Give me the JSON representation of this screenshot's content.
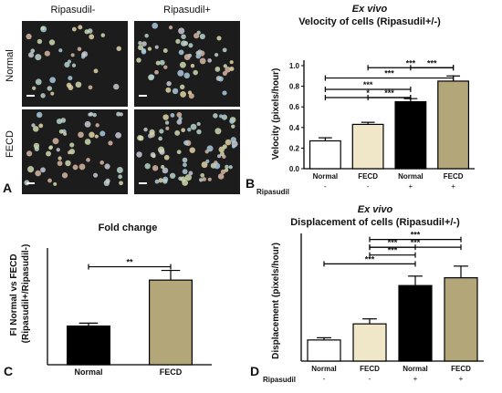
{
  "panel_a": {
    "letter": "A",
    "col_labels": [
      "Ripasudil-",
      "Ripasudil+"
    ],
    "row_labels": [
      "Normal",
      "FECD"
    ]
  },
  "colors": {
    "white_bar": "#ffffff",
    "fecd_bar": "#efe7c8",
    "black_bar": "#000000",
    "tan_bar": "#b3a679",
    "micro_bg": "#1c1c1c"
  },
  "chart_data": [
    {
      "panel": "B",
      "type": "bar",
      "title_italic": "Ex vivo",
      "title": "Velocity of cells (Ripasudil+/-)",
      "ylabel": "Velocity (pixels/hour)",
      "categories": [
        "Normal",
        "FECD",
        "Normal",
        "FECD"
      ],
      "treatment_label": "Ripasudil",
      "treatment": [
        "-",
        "-",
        "+",
        "+"
      ],
      "values": [
        0.27,
        0.43,
        0.65,
        0.85
      ],
      "errors": [
        0.03,
        0.02,
        0.03,
        0.05
      ],
      "bar_colors": [
        "#ffffff",
        "#efe7c8",
        "#000000",
        "#b3a679"
      ],
      "ylim": [
        0,
        1.0
      ],
      "yticks": [
        "0.0",
        "0.2",
        "0.4",
        "0.6",
        "0.8",
        "1.0"
      ],
      "ytick_values": [
        0,
        0.2,
        0.4,
        0.6,
        0.8,
        1.0
      ],
      "significance": [
        {
          "from": 0,
          "to": 2,
          "y": 0.69,
          "label": "*"
        },
        {
          "from": 1,
          "to": 2,
          "y": 0.69,
          "label": "***"
        },
        {
          "from": 0,
          "to": 2,
          "y": 0.77,
          "label": "***"
        },
        {
          "from": 0,
          "to": 3,
          "y": 0.88,
          "label": "***"
        },
        {
          "from": 2,
          "to": 3,
          "y": 0.98,
          "label": "***"
        },
        {
          "from": 1,
          "to": 3,
          "y": 0.98,
          "label": "***"
        }
      ]
    },
    {
      "panel": "C",
      "type": "bar",
      "title": "Fold change",
      "ylabel": "FI Normal vs FECD (Ripasudil+/Ripasudil-)",
      "categories": [
        "Normal",
        "FECD"
      ],
      "values": [
        1.6,
        3.5
      ],
      "errors": [
        0.12,
        0.4
      ],
      "bar_colors": [
        "#000000",
        "#b3a679"
      ],
      "ylim": [
        0,
        4.6
      ],
      "significance": [
        {
          "from": 0,
          "to": 1,
          "y": 4.05,
          "label": "**"
        }
      ]
    },
    {
      "panel": "D",
      "type": "bar",
      "title_italic": "Ex vivo",
      "title": "Displacement of cells (Ripasudil+/-)",
      "ylabel": "Displacement (pixels/hour)",
      "categories": [
        "Normal",
        "FECD",
        "Normal",
        "FECD"
      ],
      "treatment_label": "Ripasudil",
      "treatment": [
        "-",
        "-",
        "+",
        "+"
      ],
      "values": [
        3.8,
        6.7,
        13.6,
        15.0
      ],
      "errors": [
        0.4,
        0.9,
        1.7,
        2.1
      ],
      "bar_colors": [
        "#ffffff",
        "#efe7c8",
        "#000000",
        "#b3a679"
      ],
      "ylim": [
        0,
        22
      ],
      "significance": [
        {
          "from": 0,
          "to": 2,
          "y": 17.5,
          "label": "***"
        },
        {
          "from": 1,
          "to": 2,
          "y": 19.1,
          "label": "***"
        },
        {
          "from": 1,
          "to": 2,
          "y": 20.5,
          "label": "***"
        },
        {
          "from": 1,
          "to": 3,
          "y": 20.5,
          "label": "***"
        },
        {
          "from": 1,
          "to": 3,
          "y": 21.9,
          "label": "***"
        }
      ]
    }
  ]
}
